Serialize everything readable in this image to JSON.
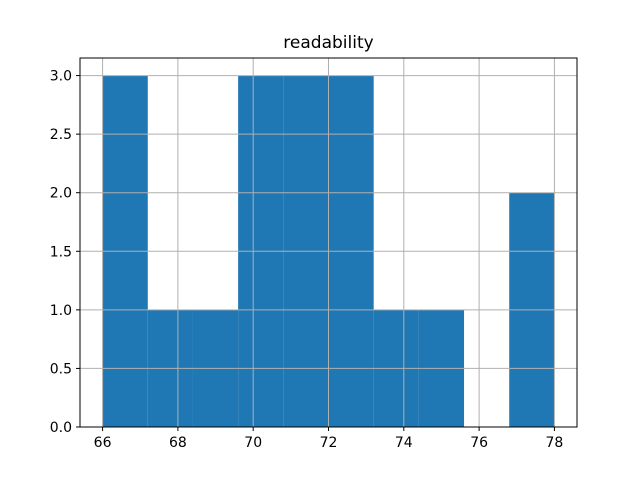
{
  "figure": {
    "background": "#ffffff"
  },
  "chart_data": {
    "type": "bar",
    "subtype": "histogram",
    "title": "readability",
    "xlabel": "",
    "ylabel": "",
    "bin_edges": [
      66.0,
      67.2,
      68.4,
      69.6,
      70.8,
      72.0,
      73.2,
      74.4,
      75.6,
      76.8,
      78.0
    ],
    "counts": [
      3,
      1,
      1,
      3,
      3,
      3,
      1,
      1,
      0,
      2
    ],
    "xticks": [
      66,
      68,
      70,
      72,
      74,
      76,
      78
    ],
    "xtick_labels": [
      "66",
      "68",
      "70",
      "72",
      "74",
      "76",
      "78"
    ],
    "ytick_values": [
      0.0,
      0.5,
      1.0,
      1.5,
      2.0,
      2.5,
      3.0
    ],
    "ytick_labels": [
      "0.0",
      "0.5",
      "1.0",
      "1.5",
      "2.0",
      "2.5",
      "3.0"
    ],
    "xlim": [
      65.4,
      78.6
    ],
    "ylim": [
      0,
      3.15
    ],
    "grid": true,
    "grid_above_bars": true,
    "legend": false,
    "bar_color": "#1f77b4",
    "grid_color": "#b0b0b0",
    "axis_color": "#000000",
    "tick_color": "#000000"
  }
}
